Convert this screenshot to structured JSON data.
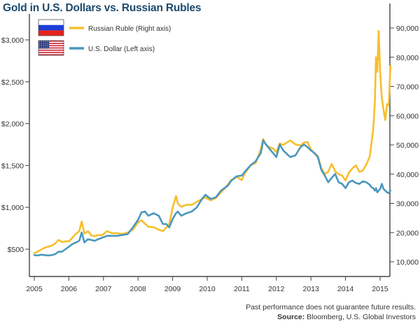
{
  "header": {
    "title": "Gold in U.S. Dollars vs. Russian Rubles"
  },
  "footer": {
    "disclaimer": "Past performance does not guarantee future results.",
    "source_label": "Source:",
    "source_text": "Bloomberg, U.S. Global Investors"
  },
  "colors": {
    "ruble": "#f7be2d",
    "usd": "#4b97bd",
    "title": "#1d4a6e"
  },
  "chart_data": {
    "type": "line",
    "title": "Gold in U.S. Dollars vs. Russian Rubles",
    "xlabel": "",
    "ylabel_left": "U.S. Dollar",
    "ylabel_right": "Russian Ruble",
    "xlim": [
      2004.95,
      2015.3
    ],
    "ylim_left": [
      200,
      3250
    ],
    "ylim_right": [
      5000,
      94000
    ],
    "x_ticks": [
      "2005",
      "2006",
      "2007",
      "2008",
      "2009",
      "2010",
      "2011",
      "2012",
      "2013",
      "2014",
      "2015"
    ],
    "y_ticks_left": [
      "$500",
      "$1,000",
      "$1,500",
      "$2,000",
      "$2,500",
      "$3,000"
    ],
    "y_ticks_left_values": [
      500,
      1000,
      1500,
      2000,
      2500,
      3000
    ],
    "y_ticks_right": [
      "10,000",
      "20,000",
      "30,000",
      "40,000",
      "50,000",
      "60,000",
      "70,000",
      "80,000",
      "90,000"
    ],
    "y_ticks_right_values": [
      10000,
      20000,
      30000,
      40000,
      50000,
      60000,
      70000,
      80000,
      90000
    ],
    "grid": false,
    "legend_position": "top-left",
    "series": [
      {
        "name": "Russian Ruble (Right axis)",
        "axis": "right",
        "icon": "russia-flag-icon",
        "x": [
          2005.0,
          2005.1,
          2005.2,
          2005.3,
          2005.4,
          2005.5,
          2005.6,
          2005.7,
          2005.8,
          2005.9,
          2006.0,
          2006.1,
          2006.2,
          2006.3,
          2006.37,
          2006.45,
          2006.55,
          2006.65,
          2006.75,
          2006.85,
          2006.95,
          2007.1,
          2007.25,
          2007.4,
          2007.55,
          2007.7,
          2007.85,
          2008.0,
          2008.1,
          2008.2,
          2008.3,
          2008.45,
          2008.6,
          2008.72,
          2008.82,
          2008.9,
          2009.0,
          2009.1,
          2009.15,
          2009.25,
          2009.4,
          2009.55,
          2009.7,
          2009.85,
          2009.95,
          2010.1,
          2010.25,
          2010.4,
          2010.5,
          2010.6,
          2010.7,
          2010.85,
          2011.0,
          2011.1,
          2011.25,
          2011.4,
          2011.55,
          2011.62,
          2011.7,
          2011.8,
          2011.9,
          2012.0,
          2012.1,
          2012.2,
          2012.3,
          2012.4,
          2012.55,
          2012.7,
          2012.8,
          2012.9,
          2013.0,
          2013.1,
          2013.2,
          2013.3,
          2013.4,
          2013.5,
          2013.6,
          2013.7,
          2013.8,
          2013.9,
          2014.0,
          2014.1,
          2014.2,
          2014.3,
          2014.4,
          2014.5,
          2014.6,
          2014.7,
          2014.75,
          2014.8,
          2014.85,
          2014.88,
          2014.92,
          2014.96,
          2015.0,
          2015.05,
          2015.1,
          2015.15,
          2015.2,
          2015.25,
          2015.3
        ],
        "values": [
          13000,
          13500,
          14200,
          14800,
          15200,
          15500,
          16200,
          17500,
          16800,
          17000,
          17000,
          18200,
          19500,
          20500,
          23800,
          19600,
          20500,
          19000,
          18800,
          19200,
          19000,
          20500,
          19800,
          19800,
          19500,
          20000,
          21000,
          23500,
          24200,
          23000,
          22000,
          21800,
          21000,
          20500,
          21800,
          22800,
          28500,
          32500,
          30000,
          28800,
          29500,
          29500,
          30500,
          31500,
          32000,
          31000,
          31800,
          33800,
          35000,
          36500,
          38000,
          39000,
          38000,
          40500,
          43000,
          43800,
          48500,
          52000,
          50000,
          49200,
          48800,
          47500,
          50500,
          50000,
          50800,
          51500,
          50200,
          49800,
          50800,
          51000,
          48500,
          47000,
          46200,
          42000,
          40000,
          40800,
          43500,
          41000,
          40000,
          39500,
          37800,
          40500,
          42000,
          43000,
          40800,
          41200,
          43200,
          46000,
          50500,
          55000,
          65000,
          80000,
          75000,
          89000,
          75000,
          66000,
          62000,
          58500,
          64000,
          63500,
          77000
        ],
        "color": "#f7be2d"
      },
      {
        "name": "U.S. Dollar (Left axis)",
        "axis": "left",
        "icon": "usa-flag-icon",
        "x": [
          2005.0,
          2005.1,
          2005.2,
          2005.3,
          2005.4,
          2005.5,
          2005.6,
          2005.7,
          2005.8,
          2005.9,
          2006.0,
          2006.1,
          2006.2,
          2006.3,
          2006.37,
          2006.45,
          2006.55,
          2006.65,
          2006.75,
          2006.85,
          2006.95,
          2007.1,
          2007.25,
          2007.4,
          2007.55,
          2007.7,
          2007.85,
          2008.0,
          2008.1,
          2008.2,
          2008.3,
          2008.45,
          2008.6,
          2008.72,
          2008.82,
          2008.9,
          2009.0,
          2009.1,
          2009.15,
          2009.25,
          2009.4,
          2009.55,
          2009.7,
          2009.85,
          2009.95,
          2010.1,
          2010.25,
          2010.4,
          2010.5,
          2010.6,
          2010.7,
          2010.85,
          2011.0,
          2011.1,
          2011.25,
          2011.4,
          2011.55,
          2011.62,
          2011.7,
          2011.8,
          2011.9,
          2012.0,
          2012.1,
          2012.2,
          2012.3,
          2012.4,
          2012.55,
          2012.7,
          2012.8,
          2012.9,
          2013.0,
          2013.1,
          2013.2,
          2013.3,
          2013.4,
          2013.5,
          2013.6,
          2013.7,
          2013.8,
          2013.9,
          2014.0,
          2014.1,
          2014.2,
          2014.3,
          2014.4,
          2014.5,
          2014.6,
          2014.7,
          2014.75,
          2014.8,
          2014.85,
          2014.88,
          2014.92,
          2014.96,
          2015.0,
          2015.05,
          2015.1,
          2015.15,
          2015.2,
          2015.25,
          2015.3
        ],
        "values": [
          430,
          425,
          435,
          430,
          425,
          430,
          440,
          470,
          470,
          500,
          530,
          560,
          580,
          600,
          700,
          580,
          620,
          610,
          600,
          620,
          635,
          660,
          660,
          660,
          670,
          680,
          760,
          850,
          940,
          950,
          900,
          930,
          900,
          800,
          800,
          760,
          860,
          930,
          950,
          900,
          930,
          950,
          1000,
          1100,
          1150,
          1100,
          1120,
          1200,
          1230,
          1260,
          1320,
          1370,
          1380,
          1430,
          1500,
          1550,
          1650,
          1800,
          1750,
          1700,
          1650,
          1600,
          1750,
          1680,
          1640,
          1600,
          1620,
          1720,
          1750,
          1720,
          1680,
          1650,
          1600,
          1450,
          1380,
          1300,
          1350,
          1400,
          1300,
          1280,
          1230,
          1300,
          1320,
          1290,
          1280,
          1310,
          1300,
          1270,
          1240,
          1230,
          1200,
          1230,
          1180,
          1200,
          1220,
          1280,
          1220,
          1200,
          1180,
          1170,
          1200
        ],
        "color": "#4b97bd"
      }
    ]
  }
}
